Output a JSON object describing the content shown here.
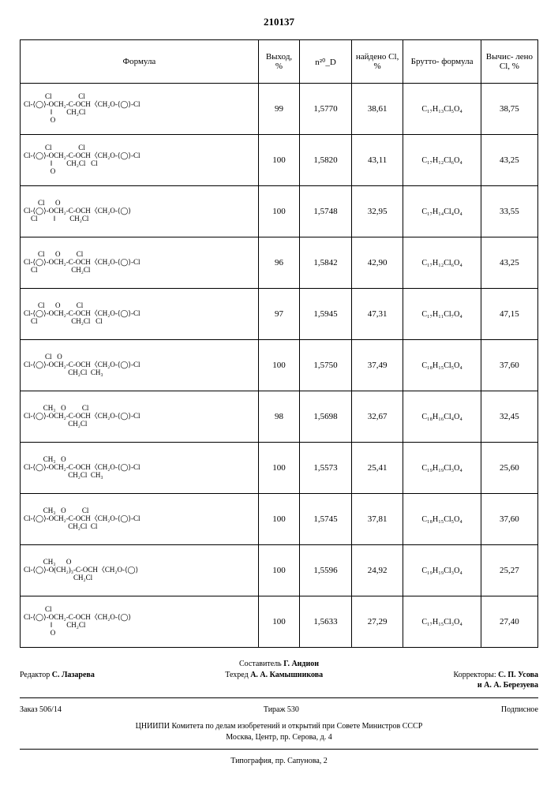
{
  "page_number": "210137",
  "headers": {
    "formula": "Формула",
    "yield": "Выход,\n%",
    "nD": "n²⁰_D",
    "found_cl": "найдено Cl, %",
    "brutto": "Брутто-\nформула",
    "calc_cl": "Вычис-\nлено Cl,\n%"
  },
  "col_widths": [
    "46%",
    "8%",
    "10%",
    "10%",
    "15%",
    "11%"
  ],
  "rows": [
    {
      "formula": "            Cl               Cl\nCl-⟨◯⟩-OCH₂-C-OCH〈CH₂O-⟨◯⟩-Cl\n               ‖        CH₂Cl\n               O",
      "yield": "99",
      "nD": "1,5770",
      "found": "38,61",
      "brutto": "C₁₇H₁₃Cl₅O₄",
      "calc": "38,75"
    },
    {
      "formula": "            Cl               Cl\nCl-⟨◯⟩-OCH₂-C-OCH〈CH₂O-⟨◯⟩-Cl\n               ‖        CH₂Cl   Cl\n               O",
      "yield": "100",
      "nD": "1,5820",
      "found": "43,11",
      "brutto": "C₁₇H₁₂Cl₆O₄",
      "calc": "43,25"
    },
    {
      "formula": "        Cl      O\nCl-⟨◯⟩-OCH₂-C-OCH〈CH₂O-⟨◯⟩\n    Cl         ‖        CH₂Cl",
      "yield": "100",
      "nD": "1,5748",
      "found": "32,95",
      "brutto": "C₁₇H₁₄Cl₄O₄",
      "calc": "33,55"
    },
    {
      "formula": "        Cl      O         Cl\nCl-⟨◯⟩-OCH₂-C-OCH〈CH₂O-⟨◯⟩-Cl\n    Cl                   CH₂Cl",
      "yield": "96",
      "nD": "1,5842",
      "found": "42,90",
      "brutto": "C₁₇H₁₂Cl₆O₄",
      "calc": "43,25"
    },
    {
      "formula": "        Cl      O         Cl\nCl-⟨◯⟩-OCH₂-C-OCH〈CH₂O-⟨◯⟩-Cl\n    Cl                   CH₂Cl   Cl",
      "yield": "97",
      "nD": "1,5945",
      "found": "47,31",
      "brutto": "C₁₇H₁₁Cl₇O₄",
      "calc": "47,15"
    },
    {
      "formula": "            Cl   O\nCl-⟨◯⟩-OCH₂-C-OCH〈CH₂O-⟨◯⟩-Cl\n                         CH₂Cl  CH₃",
      "yield": "100",
      "nD": "1,5750",
      "found": "37,49",
      "brutto": "C₁₈H₁₅Cl₅O₄",
      "calc": "37,60"
    },
    {
      "formula": "           CH₃   O         Cl\nCl-⟨◯⟩-OCH₂-C-OCH〈CH₂O-⟨◯⟩-Cl\n                         CH₂Cl",
      "yield": "98",
      "nD": "1,5698",
      "found": "32,67",
      "brutto": "C₁₈H₁₆Cl₄O₄",
      "calc": "32,45"
    },
    {
      "formula": "           CH₃   O\nCl-⟨◯⟩-OCH₂-C-OCH〈CH₂O-⟨◯⟩-Cl\n                         CH₂Cl  CH₃",
      "yield": "100",
      "nD": "1,5573",
      "found": "25,41",
      "brutto": "C₁₉H₁₉Cl₃O₄",
      "calc": "25,60"
    },
    {
      "formula": "           CH₃   O         Cl\nCl-⟨◯⟩-OCH₂-C-OCH〈CH₂O-⟨◯⟩-Cl\n                         CH₂Cl  Cl",
      "yield": "100",
      "nD": "1,5745",
      "found": "37,81",
      "brutto": "C₁₈H₁₅Cl₅O₄",
      "calc": "37,60"
    },
    {
      "formula": "           CH₃      O\nCl-⟨◯⟩-O(CH₂)₃-C-OCH〈CH₂O-⟨◯⟩\n                            CH₂Cl",
      "yield": "100",
      "nD": "1,5596",
      "found": "24,92",
      "brutto": "C₁₉H₁₉Cl₃O₄",
      "calc": "25,27"
    },
    {
      "formula": "            Cl\nCl-⟨◯⟩-OCH₂-C-OCH〈CH₂O-⟨◯⟩\n               ‖        CH₂Cl\n               O",
      "yield": "100",
      "nD": "1,5633",
      "found": "27,29",
      "brutto": "C₁₇H₁₅Cl₃O₄",
      "calc": "27,40"
    }
  ],
  "credits": {
    "compiler_label": "Составитель",
    "compiler": "Г. Андион",
    "editor_label": "Редактор",
    "editor": "С. Лазарева",
    "techred_label": "Техред",
    "techred": "А. А. Камышникова",
    "corr_label": "Корректоры:",
    "corr1": "С. П. Усова",
    "corr2": "и А. А. Березуева",
    "order": "Заказ 506/14",
    "tirazh": "Тираж 530",
    "podpisnoe": "Подписное",
    "org": "ЦНИИПИ Комитета по делам изобретений и открытий при Совете Министров СССР",
    "addr": "Москва, Центр, пр. Серова, д. 4",
    "typo": "Типография, пр. Сапунова, 2"
  }
}
